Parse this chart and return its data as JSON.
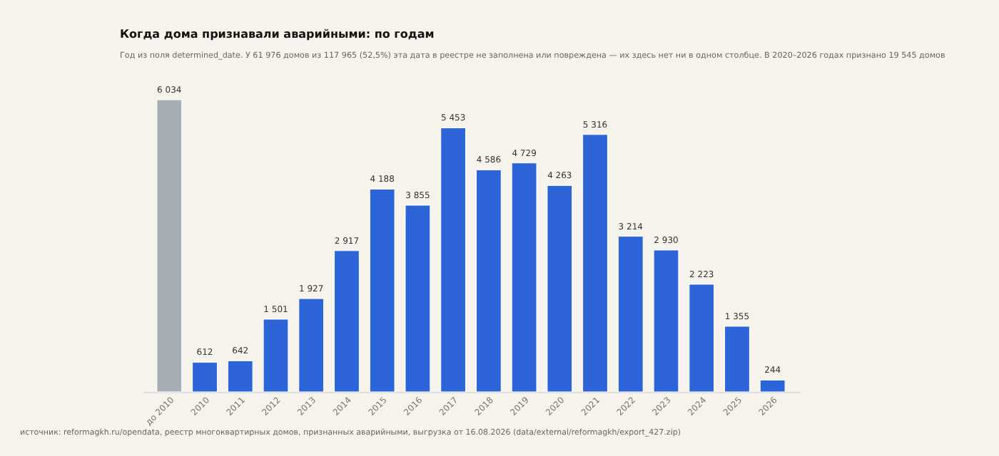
{
  "chart_data": {
    "type": "bar",
    "title": "Когда дома признавали аварийными: по годам",
    "subtitle": "Год из поля determined_date. У 61 976 домов из 117 965 (52,5%) эта дата в реестре не заполнена или повреждена — их здесь нет ни в одном столбце. В 2020–2026 годах признано 19 545 домов",
    "categories": [
      "до 2010",
      "2010",
      "2011",
      "2012",
      "2013",
      "2014",
      "2015",
      "2016",
      "2017",
      "2018",
      "2019",
      "2020",
      "2021",
      "2022",
      "2023",
      "2024",
      "2025",
      "2026"
    ],
    "values": [
      6034,
      612,
      642,
      1501,
      1927,
      2917,
      4188,
      3855,
      5453,
      4586,
      4729,
      4263,
      5316,
      3214,
      2930,
      2223,
      1355,
      244
    ],
    "value_labels": [
      "6 034",
      "612",
      "642",
      "1 501",
      "1 927",
      "2 917",
      "4 188",
      "3 855",
      "5 453",
      "4 586",
      "4 729",
      "4 263",
      "5 316",
      "3 214",
      "2 930",
      "2 223",
      "1 355",
      "244"
    ],
    "colors": [
      "#a6adb4",
      "#2d64d8",
      "#2d64d8",
      "#2d64d8",
      "#2d64d8",
      "#2d64d8",
      "#2d64d8",
      "#2d64d8",
      "#2d64d8",
      "#2d64d8",
      "#2d64d8",
      "#2d64d8",
      "#2d64d8",
      "#2d64d8",
      "#2d64d8",
      "#2d64d8",
      "#2d64d8",
      "#2d64d8"
    ],
    "annotations": [
      "источник: reformagkh.ru/opendata, реестр многоквартирных домов, признанных аварийными, выгрузка от 16.08.2026 (data/external/reformagkh/export_427.zip)"
    ],
    "grid": false
  }
}
